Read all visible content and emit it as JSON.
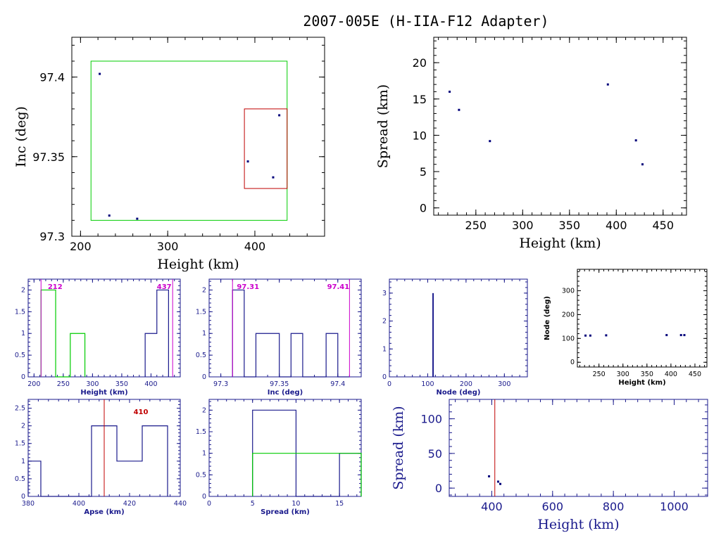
{
  "title": "2007-005E (H-IIA-F12 Adapter)",
  "colors": {
    "axis_black": "#000000",
    "axis_blue": "#1a1a8c",
    "point": "#00007a",
    "green": "#00cc00",
    "red": "#c00000",
    "magenta": "#cc00cc"
  },
  "chart_data": [
    {
      "id": "inc-vs-height",
      "type": "scatter",
      "xlabel": "Height (km)",
      "ylabel": "Inc (deg)",
      "xlim": [
        190,
        480
      ],
      "ylim": [
        97.3,
        97.425
      ],
      "xticks": [
        200,
        300,
        400
      ],
      "yticks": [
        97.3,
        97.35,
        97.4
      ],
      "yticklabels": [
        "97.3",
        "97.35",
        "97.4"
      ],
      "x": [
        222,
        233,
        265,
        392,
        421,
        428
      ],
      "y": [
        97.402,
        97.313,
        97.311,
        97.347,
        97.337,
        97.376
      ],
      "green_box": {
        "x": [
          212,
          437
        ],
        "y": [
          97.31,
          97.41
        ]
      },
      "red_box": {
        "x": [
          388,
          437
        ],
        "y": [
          97.33,
          97.38
        ]
      }
    },
    {
      "id": "spread-vs-height",
      "type": "scatter",
      "xlabel": "Height (km)",
      "ylabel": "Spread (km)",
      "xlim": [
        205,
        475
      ],
      "ylim": [
        -1,
        23.5
      ],
      "xticks": [
        250,
        300,
        350,
        400,
        450
      ],
      "yticks": [
        0,
        5,
        10,
        15,
        20
      ],
      "x": [
        222,
        232,
        265,
        391,
        421,
        428
      ],
      "y": [
        16,
        13.5,
        9.2,
        17,
        9.3,
        6
      ]
    },
    {
      "id": "height-hist",
      "type": "histogram",
      "xlabel": "Height (km)",
      "xlim": [
        190,
        450
      ],
      "ylim": [
        0,
        2.25
      ],
      "xticks": [
        200,
        250,
        300,
        350,
        400
      ],
      "yticks": [
        0,
        0.5,
        1,
        1.5,
        2
      ],
      "bins_blue": {
        "edges": [
          390,
          410,
          430
        ],
        "counts": [
          1,
          2
        ]
      },
      "bins_green": {
        "edges": [
          212,
          237,
          262,
          287
        ],
        "counts": [
          2,
          0,
          1
        ]
      },
      "vlines": [
        212,
        437
      ],
      "labels": [
        "212",
        "437"
      ]
    },
    {
      "id": "inc-hist",
      "type": "histogram",
      "xlabel": "Inc (deg)",
      "xlim": [
        97.29,
        97.42
      ],
      "ylim": [
        0,
        2.25
      ],
      "xticks": [
        97.3,
        97.35,
        97.4
      ],
      "xticklabels": [
        "97.3",
        "97.35",
        "97.4"
      ],
      "yticks": [
        0,
        0.5,
        1,
        1.5,
        2
      ],
      "bins_blue": {
        "edges": [
          97.31,
          97.32,
          97.33,
          97.35,
          97.36,
          97.37,
          97.39,
          97.4,
          97.41
        ],
        "counts": [
          2,
          0,
          1,
          0,
          1,
          0,
          1,
          0
        ]
      },
      "vlines": [
        97.31,
        97.41
      ],
      "labels": [
        "97.31",
        "97.41"
      ]
    },
    {
      "id": "node-hist",
      "type": "histogram",
      "xlabel": "Node (deg)",
      "xlim": [
        0,
        360
      ],
      "ylim": [
        0,
        3.5
      ],
      "xticks": [
        0,
        100,
        200,
        300
      ],
      "yticks": [
        0,
        1,
        2,
        3
      ],
      "spike": {
        "x": 114,
        "count": 3
      }
    },
    {
      "id": "node-vs-height",
      "type": "scatter",
      "xlabel": "Height (km)",
      "ylabel": "Node (deg)",
      "xlim": [
        205,
        475
      ],
      "ylim": [
        -20,
        390
      ],
      "xticks": [
        250,
        300,
        350,
        400,
        450
      ],
      "yticks": [
        0,
        100,
        200,
        300
      ],
      "x": [
        222,
        232,
        265,
        391,
        421,
        428
      ],
      "y": [
        112,
        112,
        113,
        114,
        114,
        114
      ]
    },
    {
      "id": "apse-hist",
      "type": "histogram",
      "xlabel": "Apse (km)",
      "xlim": [
        380,
        440
      ],
      "ylim": [
        0,
        2.75
      ],
      "xticks": [
        380,
        400,
        420,
        440
      ],
      "yticks": [
        0,
        0.5,
        1,
        1.5,
        2,
        2.5
      ],
      "bins_blue": {
        "edges": [
          380,
          385,
          405,
          415,
          425,
          435
        ],
        "counts": [
          1,
          0,
          2,
          1,
          2
        ]
      },
      "vline": 410,
      "label": "410"
    },
    {
      "id": "spread-hist",
      "type": "histogram",
      "xlabel": "Spread (km)",
      "xlim": [
        0,
        17.5
      ],
      "ylim": [
        0,
        2.25
      ],
      "xticks": [
        0,
        5,
        10,
        15
      ],
      "yticks": [
        0,
        0.5,
        1,
        1.5,
        2
      ],
      "bins_blue": {
        "edges": [
          5,
          10,
          15,
          17.5
        ],
        "counts": [
          2,
          0,
          1
        ]
      },
      "bins_green": {
        "edges": [
          5,
          17.5
        ],
        "counts": [
          1
        ]
      }
    },
    {
      "id": "spread-vs-height-wide",
      "type": "scatter",
      "xlabel": "Height (km)",
      "ylabel": "Spread (km)",
      "xlim": [
        260,
        1110
      ],
      "ylim": [
        -12,
        128
      ],
      "xticks": [
        400,
        600,
        800,
        1000
      ],
      "yticks": [
        0,
        50,
        100
      ],
      "x": [
        391,
        421,
        428
      ],
      "y": [
        17,
        9.3,
        6
      ],
      "vline": 410
    }
  ]
}
